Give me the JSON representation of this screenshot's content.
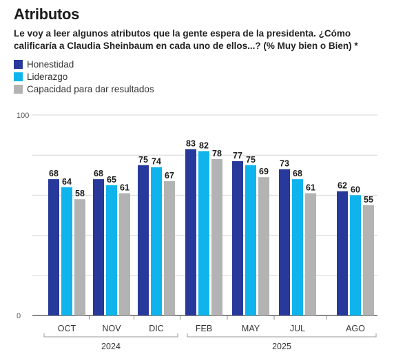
{
  "header": {
    "title": "Atributos",
    "subtitle": "Le voy a leer algunos atributos que la gente espera de la presidenta. ¿Cómo calificaría a Claudia Sheinbaum en cada uno de ellos...? (% Muy bien o Bien) *"
  },
  "chart_data": {
    "type": "bar",
    "categories": [
      "OCT",
      "NOV",
      "DIC",
      "FEB",
      "MAY",
      "JUL",
      "AGO"
    ],
    "groups": [
      {
        "label": "2024",
        "categories": [
          "OCT",
          "NOV",
          "DIC"
        ]
      },
      {
        "label": "2025",
        "categories": [
          "FEB",
          "MAY",
          "JUL",
          "AGO"
        ]
      }
    ],
    "series": [
      {
        "name": "Honestidad",
        "color": "#27399a",
        "values": [
          68,
          68,
          75,
          83,
          77,
          73,
          62
        ]
      },
      {
        "name": "Liderazgo",
        "color": "#10b4ec",
        "values": [
          64,
          65,
          74,
          82,
          75,
          68,
          60
        ]
      },
      {
        "name": "Capacidad para dar resultados",
        "color": "#b3b3b3",
        "values": [
          58,
          61,
          67,
          78,
          69,
          61,
          55
        ]
      }
    ],
    "ylim": [
      0,
      100
    ],
    "y_ticks_labeled": [
      0,
      100
    ],
    "grid": true,
    "legend": "top-left"
  }
}
